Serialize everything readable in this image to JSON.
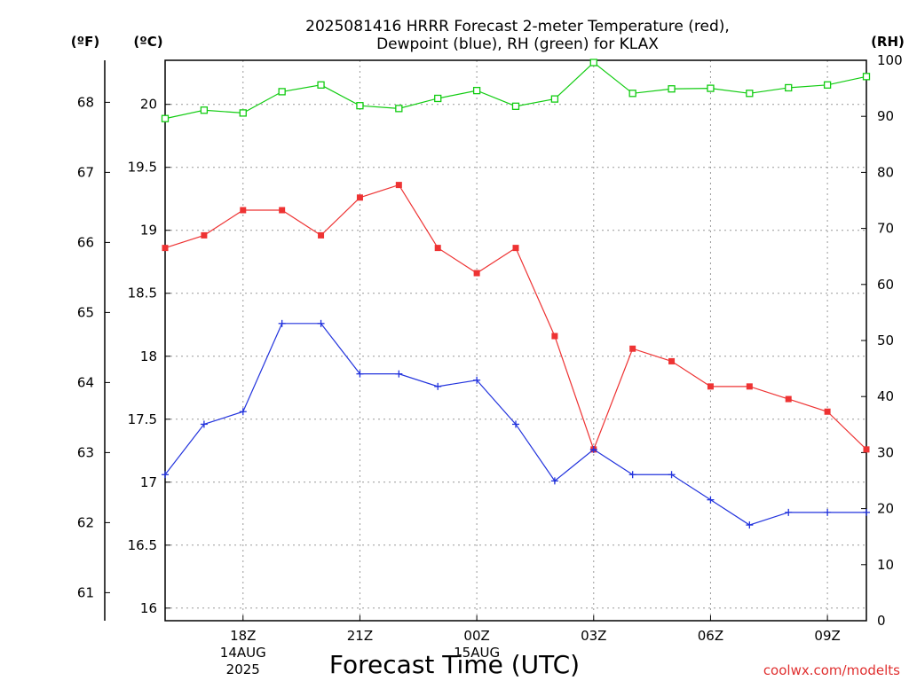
{
  "title_line1": "2025081416 HRRR Forecast 2-meter Temperature (red),",
  "title_line2": "Dewpoint (blue), RH (green) for KLAX",
  "unit_f": "(ºF)",
  "unit_c": "(ºC)",
  "unit_rh": "(RH)",
  "xlabel": "Forecast Time (UTC)",
  "credit": "coolwx.com/modelts",
  "colors": {
    "temperature": "#ee3333",
    "dewpoint": "#2233dd",
    "rh": "#11cc11",
    "grid": "#999999"
  },
  "chart_data": {
    "type": "line",
    "x_unit": "forecast hour",
    "x": [
      16,
      17,
      18,
      19,
      20,
      21,
      22,
      23,
      24,
      25,
      26,
      27,
      28,
      29,
      30,
      31,
      32,
      33,
      34
    ],
    "x_ticks": [
      {
        "hour": 18,
        "lines": [
          "18Z",
          "14AUG",
          "2025"
        ]
      },
      {
        "hour": 21,
        "lines": [
          "21Z"
        ]
      },
      {
        "hour": 24,
        "lines": [
          "00Z",
          "15AUG"
        ]
      },
      {
        "hour": 27,
        "lines": [
          "03Z"
        ]
      },
      {
        "hour": 30,
        "lines": [
          "06Z"
        ]
      },
      {
        "hour": 33,
        "lines": [
          "09Z"
        ]
      }
    ],
    "xlim": [
      16,
      34
    ],
    "y_left_c": {
      "lim": [
        15.9,
        20.35
      ],
      "ticks": [
        "16",
        "16.5",
        "17",
        "17.5",
        "18",
        "18.5",
        "19",
        "19.5",
        "20"
      ]
    },
    "y_left_f": {
      "lim": [
        60.6,
        68.6
      ],
      "ticks": [
        "61",
        "62",
        "63",
        "64",
        "65",
        "66",
        "67",
        "68"
      ]
    },
    "y_right_rh": {
      "lim": [
        0,
        100
      ],
      "ticks": [
        "0",
        "10",
        "20",
        "30",
        "40",
        "50",
        "60",
        "70",
        "80",
        "90",
        "100"
      ]
    },
    "series": [
      {
        "key": "temperature",
        "axis": "c",
        "marker": "square-filled",
        "values": [
          18.86,
          18.96,
          19.16,
          19.16,
          18.96,
          19.26,
          19.36,
          18.86,
          18.66,
          18.86,
          18.16,
          17.26,
          18.06,
          17.96,
          17.76,
          17.76,
          17.66,
          17.56,
          17.26
        ]
      },
      {
        "key": "dewpoint",
        "axis": "c",
        "marker": "plus",
        "values": [
          17.06,
          17.46,
          17.56,
          18.26,
          18.26,
          17.86,
          17.86,
          17.76,
          17.81,
          17.46,
          17.01,
          17.26,
          17.06,
          17.06,
          16.86,
          16.66,
          16.76,
          16.76,
          16.76
        ]
      },
      {
        "key": "rh",
        "axis": "rh",
        "marker": "square-open",
        "values": [
          89.6,
          91.1,
          90.6,
          94.4,
          95.6,
          91.9,
          91.4,
          93.2,
          94.6,
          91.8,
          93.1,
          99.6,
          94.1,
          94.9,
          95.0,
          94.1,
          95.1,
          95.6,
          97.1
        ]
      }
    ]
  }
}
